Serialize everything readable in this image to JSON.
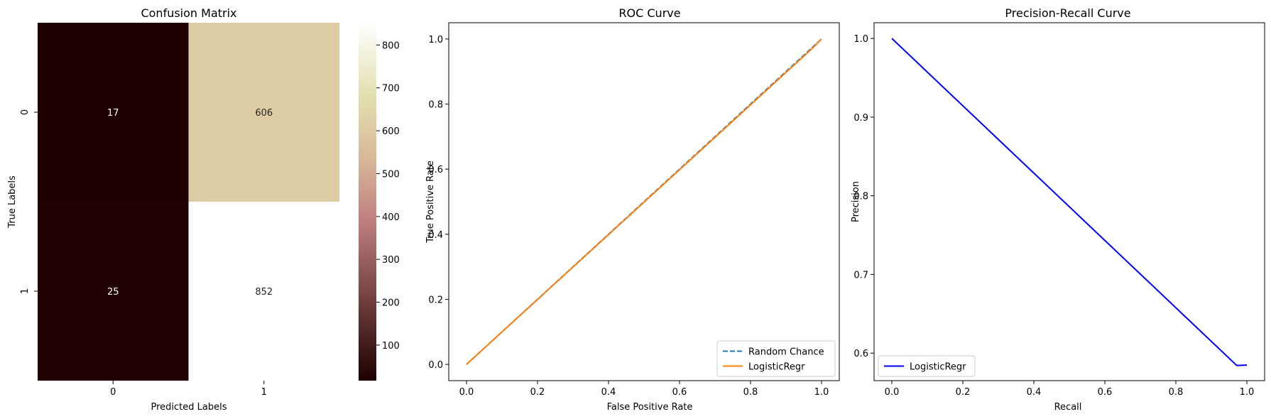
{
  "chart_data": [
    {
      "type": "heatmap",
      "title": "Confusion Matrix",
      "xlabel": "Predicted Labels",
      "ylabel": "True Labels",
      "x_categories": [
        "0",
        "1"
      ],
      "y_categories": [
        "0",
        "1"
      ],
      "matrix": [
        [
          17,
          606
        ],
        [
          25,
          852
        ]
      ],
      "colorbar": {
        "min": 17,
        "max": 852,
        "ticks": [
          100,
          200,
          300,
          400,
          500,
          600,
          700,
          800
        ]
      },
      "annotation_colors": {
        "dark_bg": "#ffffff",
        "light_bg": "#262626"
      }
    },
    {
      "type": "line",
      "title": "ROC Curve",
      "xlabel": "False Positive Rate",
      "ylabel": "True Positive Rate",
      "xlim": [
        -0.05,
        1.05
      ],
      "ylim": [
        -0.05,
        1.05
      ],
      "xticks": [
        0.0,
        0.2,
        0.4,
        0.6,
        0.8,
        1.0
      ],
      "yticks": [
        0.0,
        0.2,
        0.4,
        0.6,
        0.8,
        1.0
      ],
      "legend": "lower right",
      "series": [
        {
          "name": "Random Chance",
          "style": "dashed",
          "color": "#1f77b4",
          "x": [
            0,
            1
          ],
          "y": [
            0,
            1
          ]
        },
        {
          "name": "LogisticRegr",
          "style": "solid",
          "color": "#ff7f0e",
          "x": [
            0,
            0.973,
            1
          ],
          "y": [
            0,
            0.97,
            1
          ]
        }
      ]
    },
    {
      "type": "line",
      "title": "Precision-Recall Curve",
      "xlabel": "Recall",
      "ylabel": "Precision",
      "xlim": [
        -0.05,
        1.05
      ],
      "ylim": [
        0.565,
        1.02
      ],
      "xticks": [
        0.0,
        0.2,
        0.4,
        0.6,
        0.8,
        1.0
      ],
      "yticks": [
        0.6,
        0.7,
        0.8,
        0.9,
        1.0
      ],
      "legend": "lower left",
      "series": [
        {
          "name": "LogisticRegr",
          "style": "solid",
          "color": "#0000ff",
          "x": [
            0.0,
            0.9715,
            1.0
          ],
          "y": [
            1.0,
            0.5843,
            0.5847
          ]
        }
      ]
    }
  ]
}
